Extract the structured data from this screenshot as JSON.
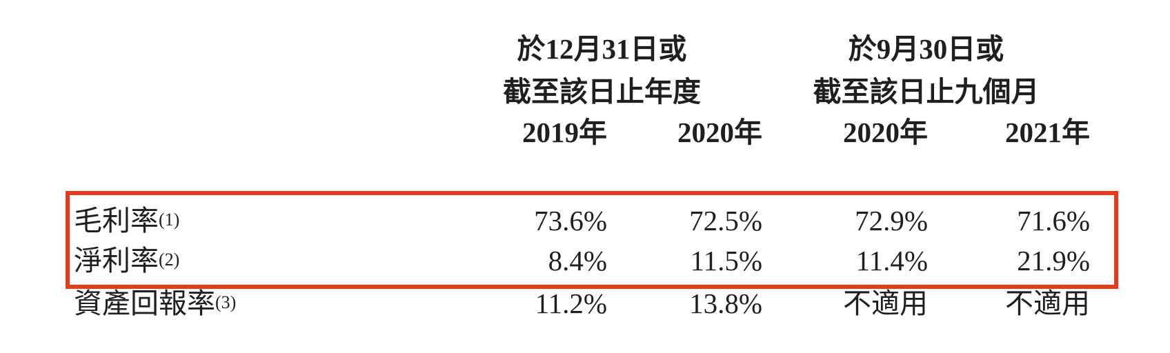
{
  "page": {
    "background": "#ffffff",
    "text_color": "#1f1f1f"
  },
  "table": {
    "column_groups": [
      {
        "line1": "於12月31日或",
        "line2": "截至該日止年度"
      },
      {
        "line1": "於9月30日或",
        "line2": "截至該日止九個月"
      }
    ],
    "year_headers": [
      "2019年",
      "2020年",
      "2020年",
      "2021年"
    ],
    "rows": [
      {
        "label": "毛利率",
        "footnote": "(1)",
        "values": [
          "73.6%",
          "72.5%",
          "72.9%",
          "71.6%"
        ]
      },
      {
        "label": "淨利率",
        "footnote": "(2)",
        "values": [
          "8.4%",
          "11.5%",
          "11.4%",
          "21.9%"
        ]
      },
      {
        "label": "資產回報率",
        "footnote": "(3)",
        "values": [
          "11.2%",
          "13.8%",
          "不適用",
          "不適用"
        ]
      }
    ],
    "highlight": {
      "color": "#e8391d"
    }
  }
}
